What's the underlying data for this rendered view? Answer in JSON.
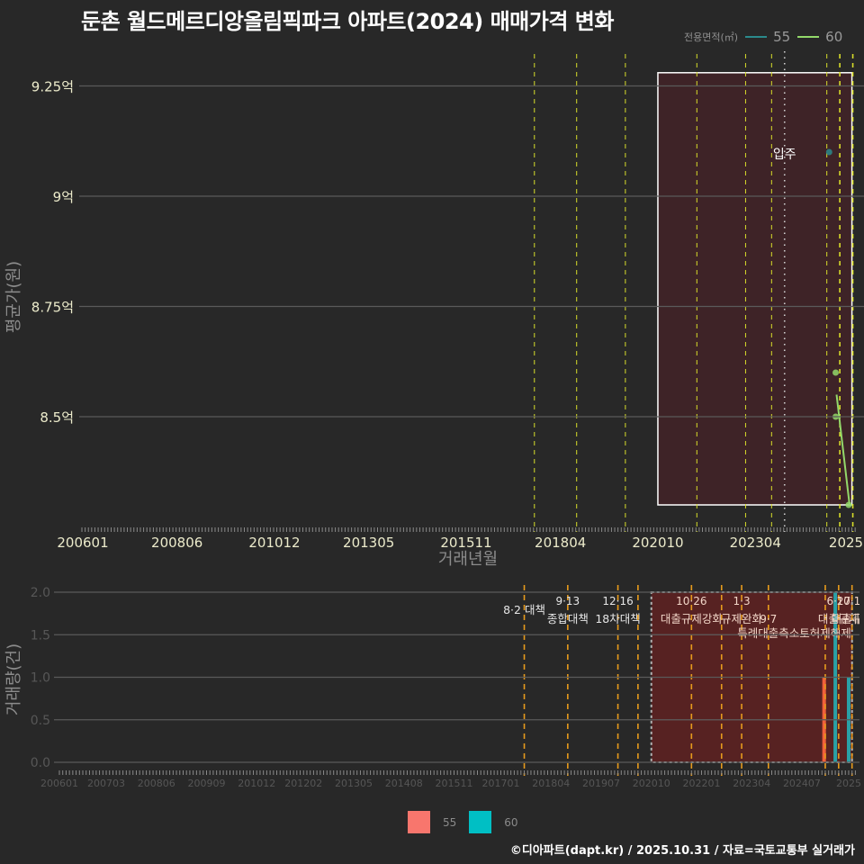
{
  "title": "둔촌 월드메르디앙올림픽파크 아파트(2024) 매매가격 변화",
  "legend_top": {
    "title": "전용면적(㎡)",
    "items": [
      {
        "label": "55",
        "color": "#2b8a8c"
      },
      {
        "label": "60",
        "color": "#93d86a"
      }
    ]
  },
  "legend_bottom": {
    "items": [
      {
        "label": "55",
        "color": "#F8766D"
      },
      {
        "label": "60",
        "color": "#00BFC4"
      }
    ]
  },
  "caption": "©디아파트(dapt.kr) / 2025.10.31 / 자료=국토교통부 실거래가",
  "chart_data": [
    {
      "type": "line",
      "title": "둔촌 월드메르디앙올림픽파크 아파트(2024) 매매가격 변화",
      "xlabel": "거래년월",
      "ylabel": "평균가(원)",
      "x_ticks": [
        "200601",
        "200806",
        "201012",
        "201305",
        "201511",
        "201804",
        "202010",
        "202304",
        "2025"
      ],
      "x_tick_months": [
        0,
        29,
        59,
        88,
        118,
        147,
        177,
        207,
        237
      ],
      "y_ticks": [
        {
          "value": 9.25,
          "label": "9.25억"
        },
        {
          "value": 9.0,
          "label": "9억"
        },
        {
          "value": 8.75,
          "label": "8.75억"
        },
        {
          "value": 8.5,
          "label": "8.5억"
        }
      ],
      "ylim": [
        8.25,
        9.33
      ],
      "grid": true,
      "legend_position": "top-right",
      "highlight_box": {
        "from": "202010",
        "to": "202510",
        "from_month": 177,
        "to_month": 237,
        "ymin": 8.3,
        "ymax": 9.28
      },
      "event_lines": [
        {
          "date": "201708",
          "month": 139
        },
        {
          "date": "201809",
          "month": 152
        },
        {
          "date": "201912",
          "month": 167
        },
        {
          "date": "202110",
          "month": 189
        },
        {
          "date": "202301",
          "month": 204
        },
        {
          "date": "202309",
          "month": 212
        },
        {
          "date": "202502",
          "month": 229
        },
        {
          "date": "202506",
          "month": 233
        },
        {
          "date": "202510",
          "month": 237
        }
      ],
      "move_in": {
        "label": "입주",
        "date": "202401",
        "month": 216,
        "label_value": 9.1
      },
      "series": [
        {
          "name": "55",
          "color": "#2b8a8c",
          "points": [
            {
              "x": "202503",
              "month": 230,
              "y": 9.1
            }
          ],
          "line": [
            {
              "x": "202503",
              "month": 230,
              "y": 9.1
            }
          ]
        },
        {
          "name": "60",
          "color": "#93d86a",
          "points": [
            {
              "x": "202505",
              "month": 232,
              "y": 8.6
            },
            {
              "x": "202505",
              "month": 232,
              "y": 8.5
            },
            {
              "x": "202509",
              "month": 236,
              "y": 8.3
            }
          ],
          "line": [
            {
              "x": "202505",
              "month": 232,
              "y": 8.55
            },
            {
              "x": "202509",
              "month": 236,
              "y": 8.3
            }
          ]
        }
      ]
    },
    {
      "type": "bar",
      "xlabel": "",
      "ylabel": "거래량(건)",
      "x_ticks": [
        "200601",
        "200703",
        "200806",
        "200909",
        "201012",
        "201202",
        "201305",
        "201408",
        "201511",
        "201701",
        "201804",
        "201907",
        "202010",
        "202201",
        "202304",
        "202407",
        "2025"
      ],
      "x_tick_months": [
        0,
        14,
        29,
        44,
        59,
        73,
        88,
        103,
        118,
        132,
        147,
        162,
        177,
        192,
        207,
        222,
        237
      ],
      "y_ticks": [
        "0.0",
        "0.5",
        "1.0",
        "1.5",
        "2.0"
      ],
      "ylim": [
        0,
        2.0
      ],
      "grid": true,
      "legend_position": "bottom",
      "highlight_box": {
        "from": "202010",
        "to": "202510",
        "from_month": 177,
        "to_month": 237
      },
      "event_lines": [
        {
          "month": 139,
          "date_label": "",
          "name": "8·2 대책"
        },
        {
          "month": 152,
          "date_label": "9·13",
          "name": "종합대책"
        },
        {
          "month": 167,
          "date_label": "12·16",
          "name": "18차대책"
        },
        {
          "month": 173,
          "date_label": "",
          "name": ""
        },
        {
          "month": 189,
          "date_label": "10·26",
          "name": "대출규제강화"
        },
        {
          "month": 198,
          "date_label": "",
          "name": ""
        },
        {
          "month": 204,
          "date_label": "1·3",
          "name": "규제완화"
        },
        {
          "month": 212,
          "date_label": "9·7",
          "name": "특례대출축소"
        },
        {
          "month": 229,
          "date_label": "",
          "name": "토허제해제"
        },
        {
          "month": 233,
          "date_label": "6·27",
          "name": "대출규제"
        },
        {
          "month": 237,
          "date_label": "10·15",
          "name": "대출규제"
        }
      ],
      "series": [
        {
          "name": "55",
          "color": "#F8766D",
          "bars": [
            {
              "x": "202503",
              "month": 230,
              "y": 1
            }
          ]
        },
        {
          "name": "60",
          "color": "#00BFC4",
          "bars": [
            {
              "x": "202505",
              "month": 232,
              "y": 2
            },
            {
              "x": "202509",
              "month": 236,
              "y": 1
            }
          ]
        }
      ]
    }
  ]
}
